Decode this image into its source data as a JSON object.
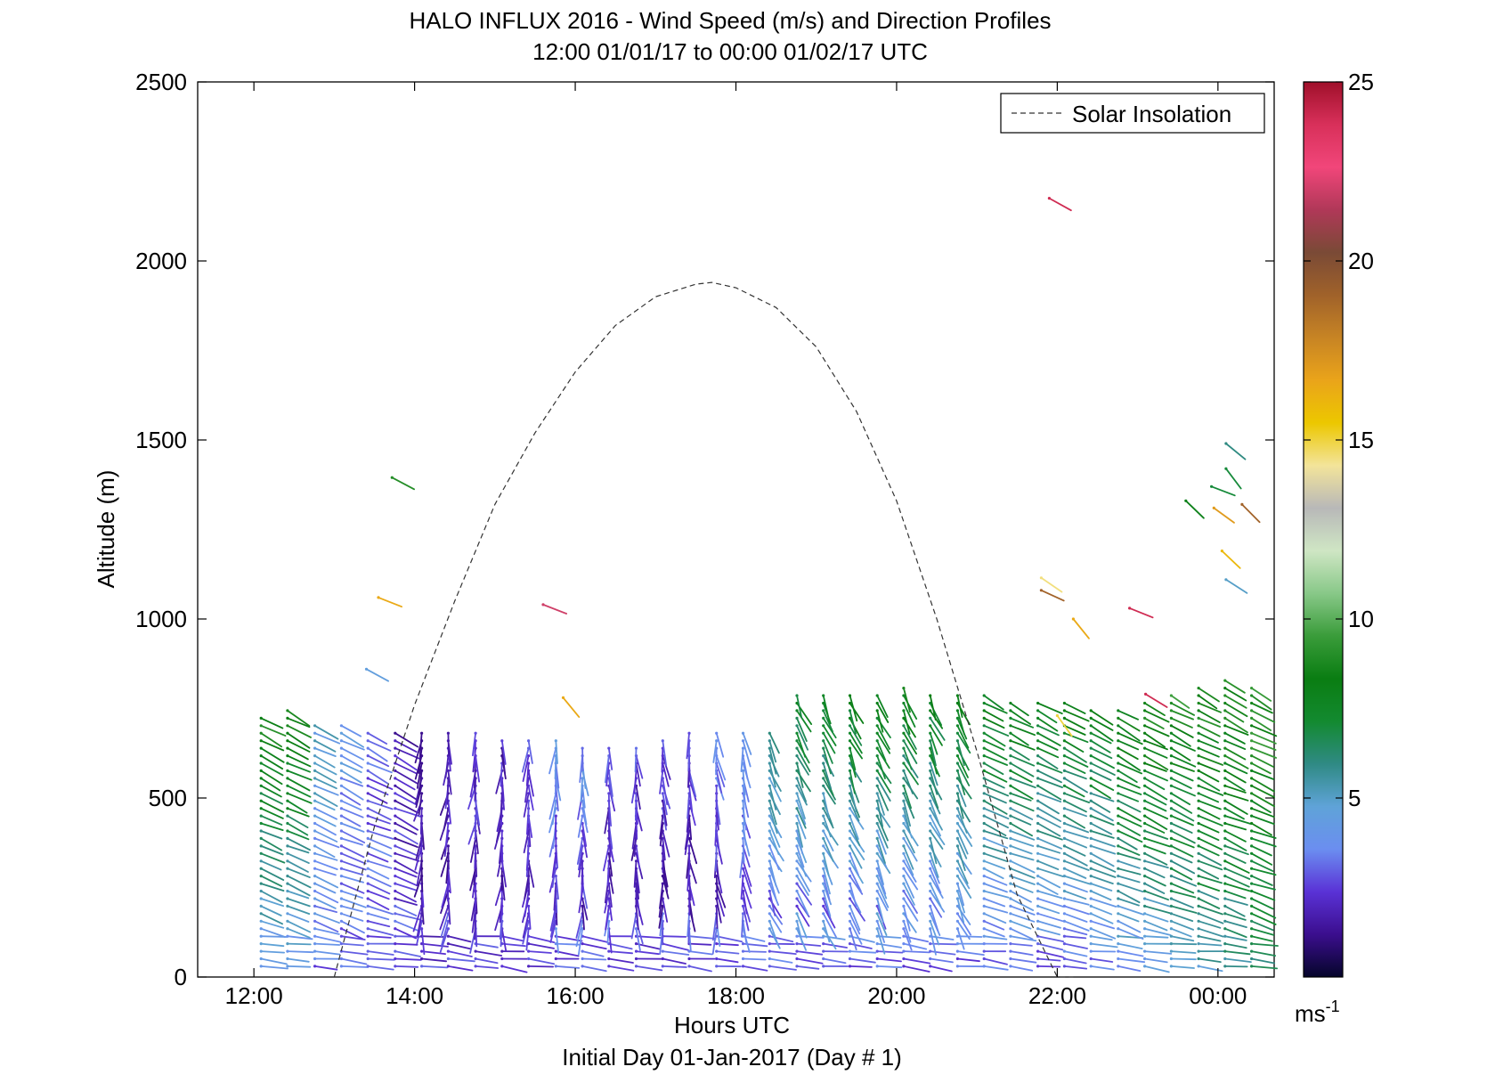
{
  "chart_data": {
    "type": "scatter",
    "title": "HALO INFLUX 2016 - Wind Speed (m/s) and Direction Profiles",
    "subtitle": "12:00 01/01/17 to 00:00 01/02/17  UTC",
    "xlabel": "Hours UTC",
    "xlabel2": "Initial Day 01-Jan-2017 (Day # 1)",
    "ylabel": "Altitude (m)",
    "xlim": [
      11.3,
      24.7
    ],
    "ylim": [
      0,
      2500
    ],
    "x_ticks": [
      12,
      14,
      16,
      18,
      20,
      22,
      24
    ],
    "x_tick_labels": [
      "12:00",
      "14:00",
      "16:00",
      "18:00",
      "20:00",
      "22:00",
      "00:00"
    ],
    "y_ticks": [
      0,
      500,
      1000,
      1500,
      2000,
      2500
    ],
    "y_tick_labels": [
      "0",
      "500",
      "1000",
      "1500",
      "2000",
      "2500"
    ],
    "legend": {
      "entries": [
        "Solar Insolation"
      ],
      "placement": "top-right"
    },
    "colorbar": {
      "range": [
        0,
        25
      ],
      "ticks": [
        5,
        10,
        15,
        20,
        25
      ],
      "tick_labels": [
        "5",
        "10",
        "15",
        "20",
        "25"
      ],
      "unit_base": "ms",
      "unit_exp": "-1",
      "colors": [
        "#05052a",
        "#3b0e8e",
        "#5a32d6",
        "#6b8ef0",
        "#5fa3d8",
        "#2f8a84",
        "#138a30",
        "#0a7d12",
        "#3a9c3a",
        "#88c888",
        "#cfe6c4",
        "#b8b8b8",
        "#f3e49a",
        "#ecc700",
        "#eaa41a",
        "#c78424",
        "#a0622a",
        "#7a4a36",
        "#b03858",
        "#f1467a",
        "#d8305a",
        "#a0102a"
      ]
    },
    "solar_insolation": {
      "style": "dashed",
      "color": "#333333",
      "x": [
        13.0,
        13.5,
        14.0,
        14.5,
        15.0,
        15.5,
        16.0,
        16.5,
        17.0,
        17.5,
        17.7,
        18.0,
        18.5,
        19.0,
        19.5,
        20.0,
        20.5,
        21.0,
        21.5,
        22.0,
        22.2
      ],
      "y": [
        0,
        420,
        760,
        1050,
        1320,
        1520,
        1690,
        1820,
        1900,
        1935,
        1940,
        1925,
        1870,
        1760,
        1580,
        1330,
        1000,
        630,
        230,
        0,
        0
      ]
    },
    "wind_profile_times": [
      12.0,
      12.33,
      12.67,
      13.0,
      13.33,
      13.67,
      14.0,
      14.33,
      14.67,
      15.0,
      15.33,
      15.67,
      16.0,
      16.33,
      16.67,
      17.0,
      17.33,
      17.67,
      18.0,
      18.33,
      18.67,
      19.0,
      19.33,
      19.67,
      20.0,
      20.33,
      20.67,
      21.0,
      21.33,
      21.67,
      22.0,
      22.33,
      22.67,
      23.0,
      23.33,
      23.67,
      24.0,
      24.33
    ],
    "wind_profile_top_m": [
      740,
      760,
      720,
      710,
      700,
      700,
      700,
      690,
      690,
      680,
      670,
      660,
      650,
      640,
      650,
      660,
      690,
      700,
      700,
      700,
      800,
      800,
      800,
      800,
      810,
      800,
      800,
      790,
      780,
      780,
      770,
      760,
      760,
      780,
      800,
      820,
      840,
      820
    ],
    "wind_profile_surface_speed_ms": [
      3.5,
      3.5,
      3,
      3,
      3,
      3,
      2.5,
      2.5,
      2.5,
      2.5,
      2.5,
      2.5,
      2.5,
      2.5,
      2.5,
      2.5,
      2.5,
      2.5,
      2.5,
      2.5,
      2.5,
      2.5,
      2.5,
      2.5,
      2.5,
      2.5,
      2.5,
      2.5,
      2.5,
      2.5,
      2.5,
      3,
      3.5,
      4,
      4.5,
      5,
      5.5,
      6
    ],
    "wind_profile_top_speed_ms": [
      9,
      9,
      5,
      4,
      3,
      2,
      1.5,
      2.5,
      3,
      3,
      3.5,
      5,
      5,
      4,
      4,
      4,
      4,
      5,
      6,
      8,
      9,
      9,
      9,
      9,
      9,
      8.5,
      8.5,
      8.5,
      8.5,
      8,
      8,
      8,
      8.5,
      9,
      9,
      9,
      9,
      9.5
    ],
    "upper_barbs": [
      {
        "x": 13.72,
        "alt": 1395,
        "speed": 9
      },
      {
        "x": 13.55,
        "alt": 1060,
        "speed": 16.5
      },
      {
        "x": 13.4,
        "alt": 860,
        "speed": 4.5
      },
      {
        "x": 15.6,
        "alt": 1040,
        "speed": 22
      },
      {
        "x": 15.85,
        "alt": 780,
        "speed": 16.5
      },
      {
        "x": 21.9,
        "alt": 2175,
        "speed": 24
      },
      {
        "x": 21.8,
        "alt": 1115,
        "speed": 14.5
      },
      {
        "x": 21.8,
        "alt": 1080,
        "speed": 19
      },
      {
        "x": 22.2,
        "alt": 1000,
        "speed": 16.5
      },
      {
        "x": 22.9,
        "alt": 1030,
        "speed": 24
      },
      {
        "x": 23.1,
        "alt": 790,
        "speed": 24
      },
      {
        "x": 23.6,
        "alt": 1330,
        "speed": 8
      },
      {
        "x": 23.92,
        "alt": 1370,
        "speed": 7
      },
      {
        "x": 23.95,
        "alt": 1310,
        "speed": 17
      },
      {
        "x": 24.05,
        "alt": 1190,
        "speed": 16
      },
      {
        "x": 24.1,
        "alt": 1490,
        "speed": 6
      },
      {
        "x": 24.1,
        "alt": 1420,
        "speed": 7
      },
      {
        "x": 24.1,
        "alt": 1110,
        "speed": 5
      },
      {
        "x": 24.3,
        "alt": 1320,
        "speed": 19
      },
      {
        "x": 22.0,
        "alt": 730,
        "speed": 15
      }
    ]
  }
}
